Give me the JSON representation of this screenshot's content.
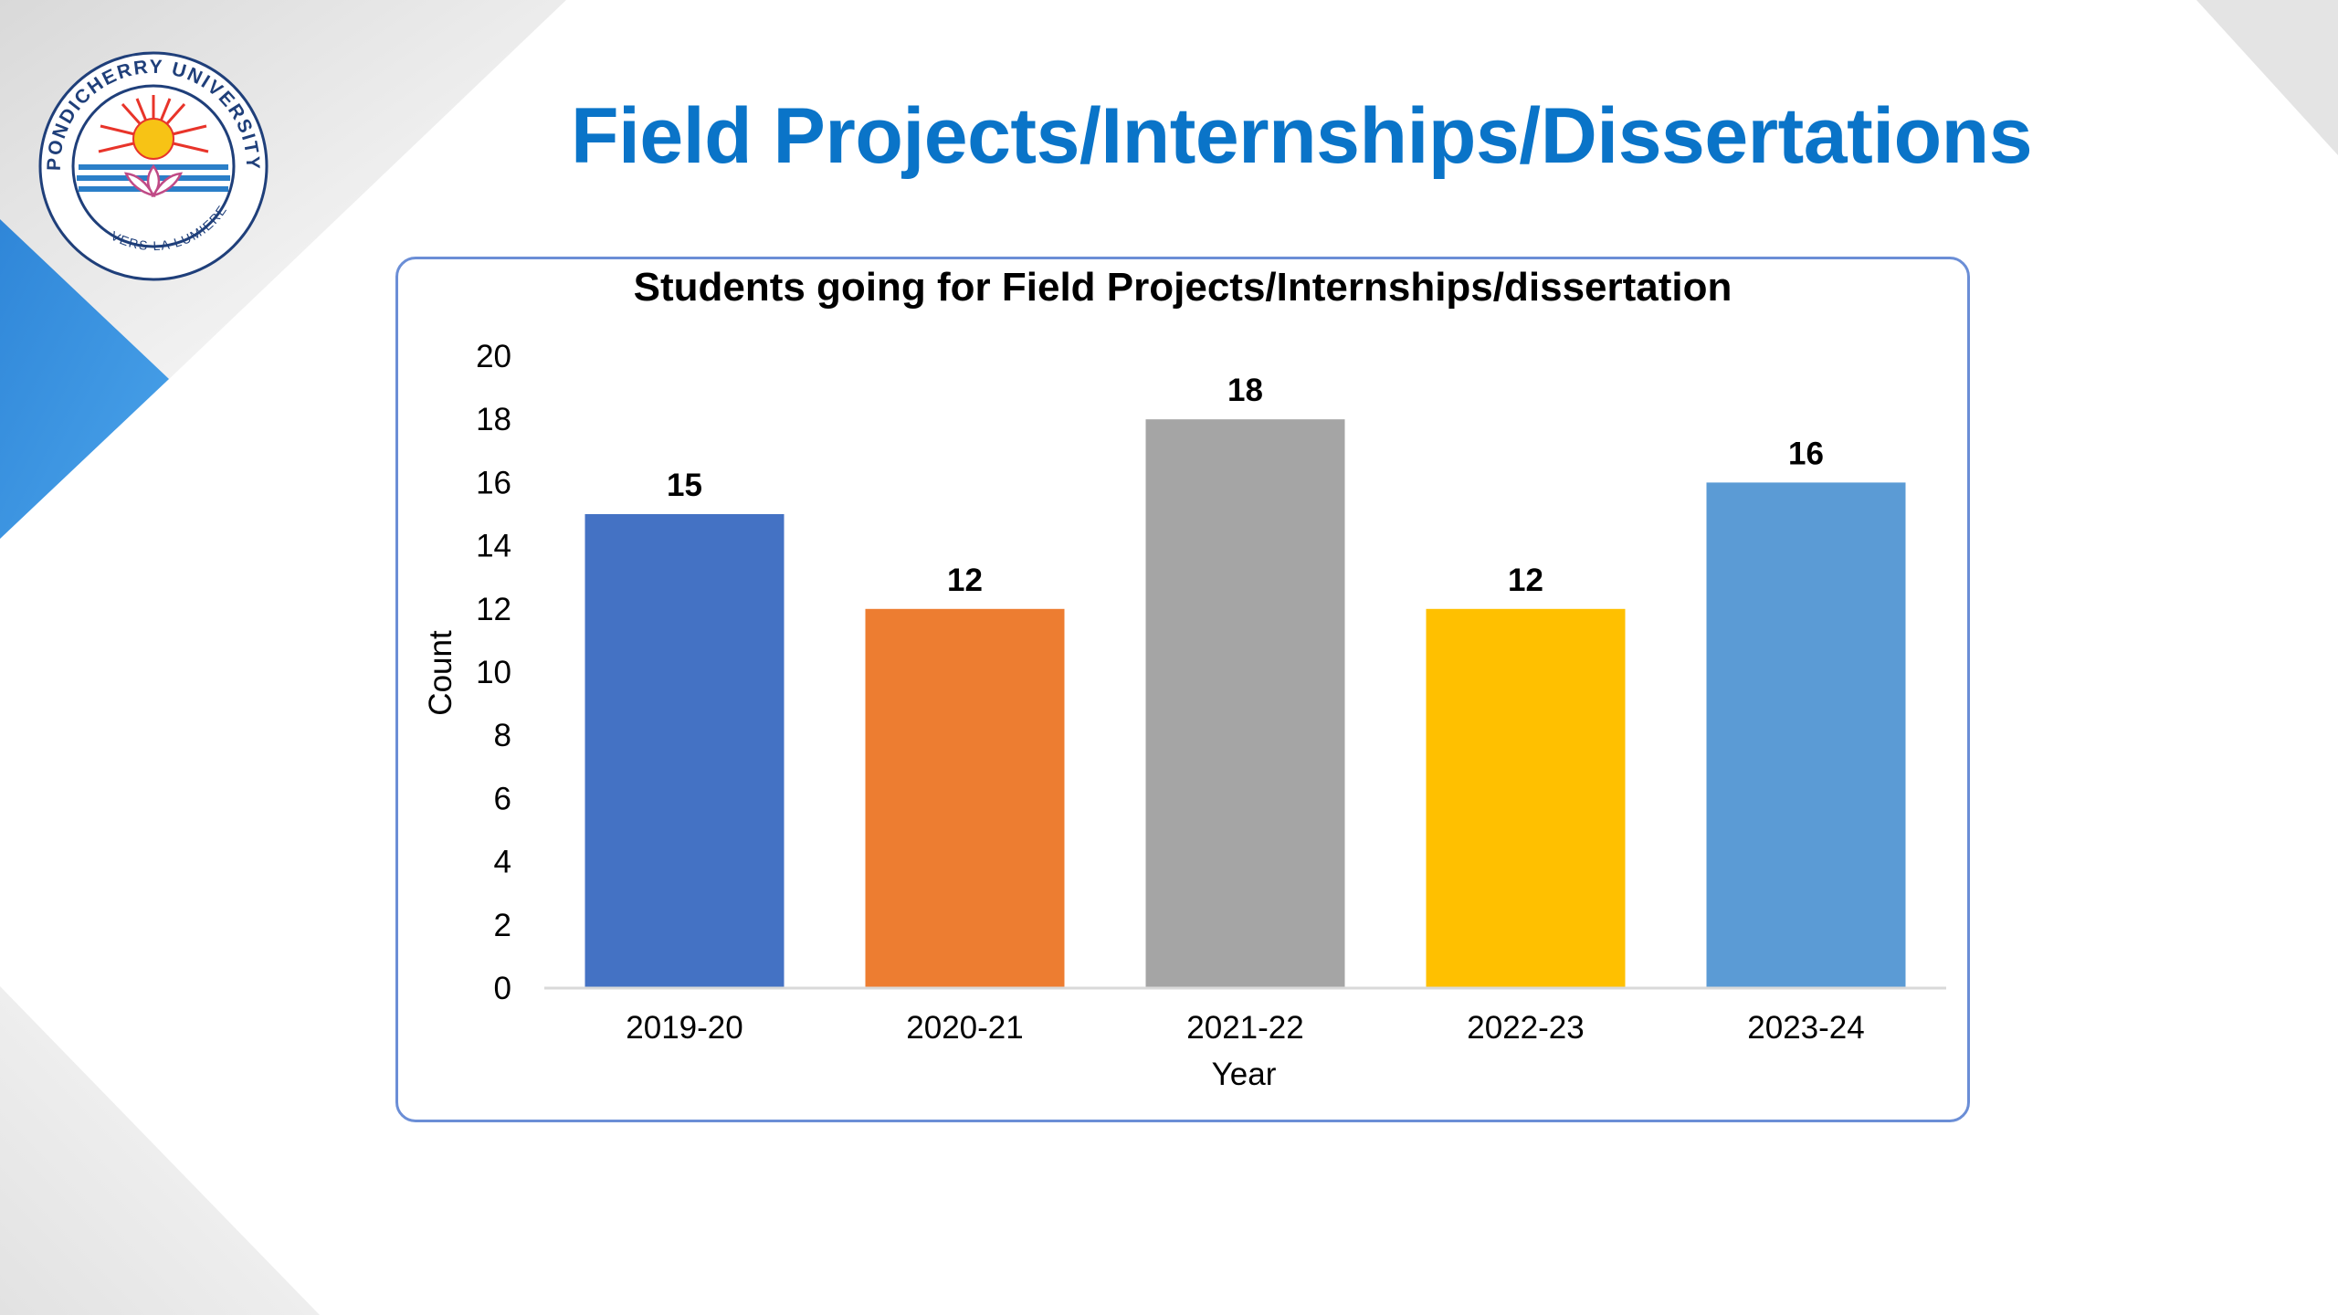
{
  "slide": {
    "title": "Field Projects/Internships/Dissertations"
  },
  "logo": {
    "icon": "university-seal",
    "ring_text": "PONDICHERRY UNIVERSITY",
    "motto": "VERS LA LUMIERE"
  },
  "colors": {
    "title": "#0a74c8",
    "accent_blue": "#3a8fde",
    "frame_border": "#6b8ed6"
  },
  "chart_data": {
    "type": "bar",
    "title": "Students going for Field Projects/Internships/dissertation",
    "xlabel": "Year",
    "ylabel": "Count",
    "ylim": [
      0,
      20
    ],
    "yticks": [
      0,
      2,
      4,
      6,
      8,
      10,
      12,
      14,
      16,
      18,
      20
    ],
    "grid": false,
    "categories": [
      "2019-20",
      "2020-21",
      "2021-22",
      "2022-23",
      "2023-24"
    ],
    "values": [
      15,
      12,
      18,
      12,
      16
    ],
    "bar_colors": [
      "#4472c4",
      "#ed7d31",
      "#a5a5a5",
      "#ffc000",
      "#5b9bd5"
    ]
  }
}
